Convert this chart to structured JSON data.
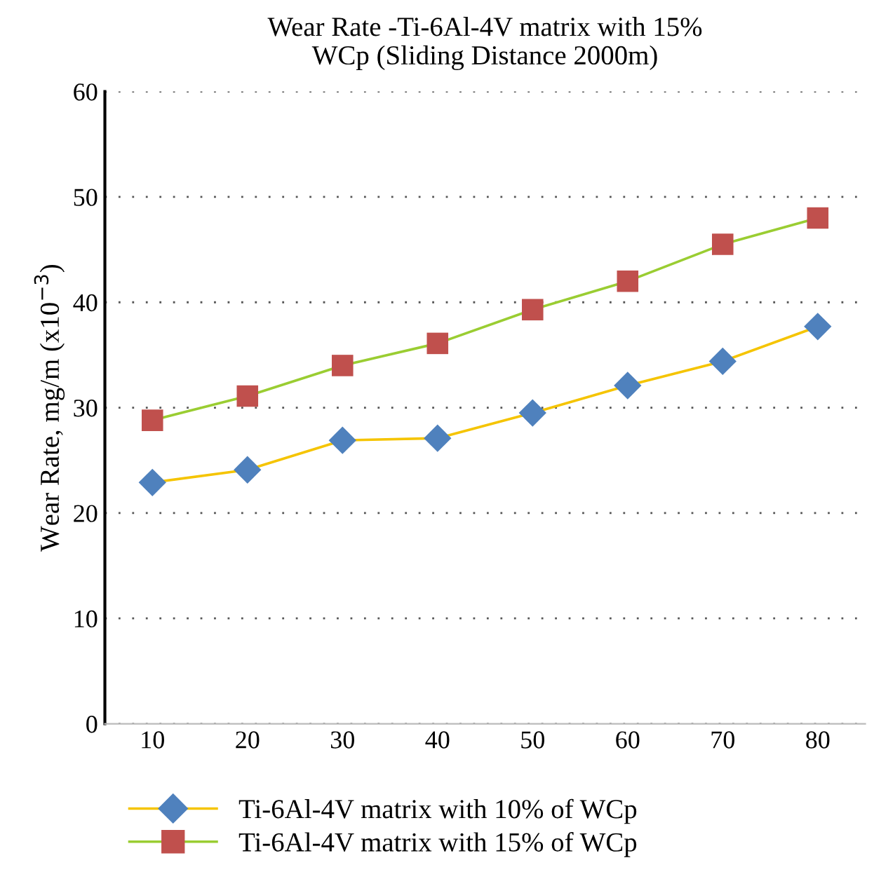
{
  "chart_data": {
    "type": "line",
    "title": "Wear Rate -Ti-6Al-4V matrix with 15%\nWCp (Sliding Distance 2000m)",
    "ylabel": "Wear Rate, mg/m (x10$^{−3}$)",
    "categories": [
      "10",
      "20",
      "30",
      "40",
      "50",
      "60",
      "70",
      "80"
    ],
    "series": [
      {
        "name": "Ti-6Al-4V matrix with 10% of WCp",
        "color": "#f5c400",
        "colors": [
          "#4f81bd",
          "#4f81bd",
          "#4f81bd",
          "#4f81bd",
          "#4f81bd",
          "#4f81bd",
          "#4f81bd",
          "#4f81bd"
        ],
        "marker": "diamond",
        "values": [
          22.9,
          24.1,
          26.9,
          27.1,
          29.5,
          32.1,
          34.4,
          37.7
        ]
      },
      {
        "name": "Ti-6Al-4V matrix with 15% of WCp",
        "color": "#9acd32",
        "colors": [
          "#c0504d",
          "#c0504d",
          "#c0504d",
          "#c0504d",
          "#c0504d",
          "#c0504d",
          "#c0504d",
          "#c0504d"
        ],
        "marker": "square",
        "values": [
          28.8,
          31.1,
          34.0,
          36.1,
          39.3,
          42.0,
          45.5,
          48.0
        ]
      }
    ],
    "ylim": [
      0,
      60
    ],
    "yticks": [
      0,
      10,
      20,
      30,
      40,
      50,
      60
    ],
    "grid": "y",
    "legend": "bottom",
    "line_style": "solid"
  }
}
